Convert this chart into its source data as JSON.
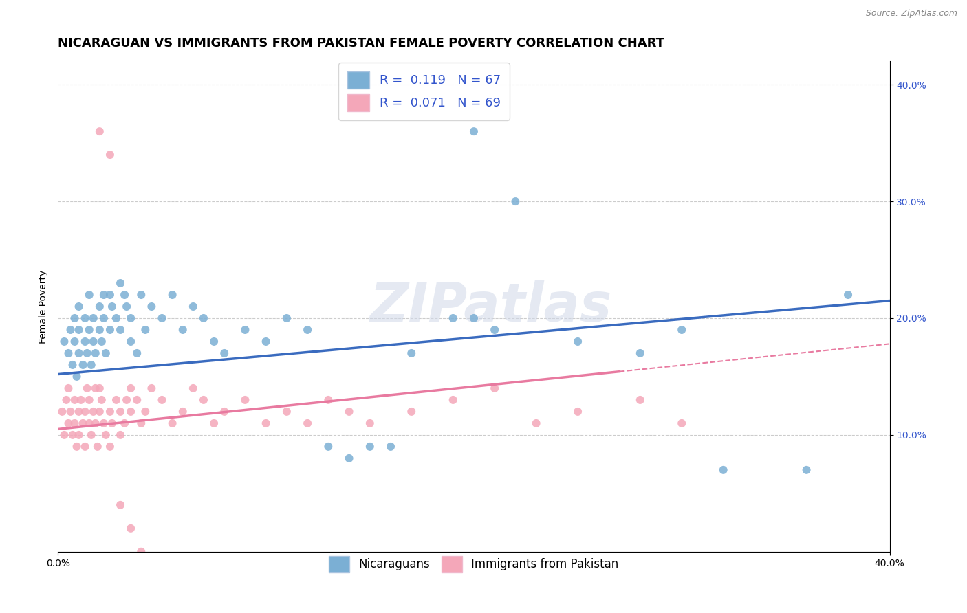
{
  "title": "NICARAGUAN VS IMMIGRANTS FROM PAKISTAN FEMALE POVERTY CORRELATION CHART",
  "source": "Source: ZipAtlas.com",
  "ylabel": "Female Poverty",
  "watermark": "ZIPatlas",
  "blue_color": "#7bafd4",
  "pink_color": "#f4a7b9",
  "blue_line_color": "#3a6bbf",
  "pink_line_color": "#e87aa0",
  "title_fontsize": 13,
  "axis_label_fontsize": 10,
  "tick_fontsize": 10,
  "xlim": [
    0.0,
    0.4
  ],
  "ylim": [
    0.0,
    0.42
  ],
  "blue_N": 67,
  "pink_N": 69,
  "blue_R": 0.119,
  "pink_R": 0.071,
  "blue_line_x0": 0.0,
  "blue_line_y0": 0.152,
  "blue_line_x1": 0.4,
  "blue_line_y1": 0.215,
  "pink_line_x0": 0.0,
  "pink_line_y0": 0.105,
  "pink_line_x1": 0.4,
  "pink_line_y1": 0.178,
  "blue_scatter_x": [
    0.003,
    0.005,
    0.006,
    0.007,
    0.008,
    0.008,
    0.009,
    0.01,
    0.01,
    0.01,
    0.012,
    0.013,
    0.013,
    0.014,
    0.015,
    0.015,
    0.016,
    0.017,
    0.017,
    0.018,
    0.02,
    0.02,
    0.021,
    0.022,
    0.022,
    0.023,
    0.025,
    0.025,
    0.026,
    0.028,
    0.03,
    0.03,
    0.032,
    0.033,
    0.035,
    0.035,
    0.038,
    0.04,
    0.042,
    0.045,
    0.05,
    0.055,
    0.06,
    0.065,
    0.07,
    0.075,
    0.08,
    0.09,
    0.1,
    0.11,
    0.12,
    0.13,
    0.14,
    0.15,
    0.16,
    0.17,
    0.19,
    0.2,
    0.21,
    0.25,
    0.28,
    0.3,
    0.32,
    0.36,
    0.38,
    0.2,
    0.22
  ],
  "blue_scatter_y": [
    0.18,
    0.17,
    0.19,
    0.16,
    0.18,
    0.2,
    0.15,
    0.17,
    0.19,
    0.21,
    0.16,
    0.18,
    0.2,
    0.17,
    0.19,
    0.22,
    0.16,
    0.18,
    0.2,
    0.17,
    0.19,
    0.21,
    0.18,
    0.2,
    0.22,
    0.17,
    0.19,
    0.22,
    0.21,
    0.2,
    0.23,
    0.19,
    0.22,
    0.21,
    0.2,
    0.18,
    0.17,
    0.22,
    0.19,
    0.21,
    0.2,
    0.22,
    0.19,
    0.21,
    0.2,
    0.18,
    0.17,
    0.19,
    0.18,
    0.2,
    0.19,
    0.09,
    0.08,
    0.09,
    0.09,
    0.17,
    0.2,
    0.2,
    0.19,
    0.18,
    0.17,
    0.19,
    0.07,
    0.07,
    0.22,
    0.36,
    0.3
  ],
  "pink_scatter_x": [
    0.002,
    0.003,
    0.004,
    0.005,
    0.005,
    0.006,
    0.007,
    0.008,
    0.008,
    0.009,
    0.01,
    0.01,
    0.011,
    0.012,
    0.013,
    0.013,
    0.014,
    0.015,
    0.015,
    0.016,
    0.017,
    0.018,
    0.018,
    0.019,
    0.02,
    0.02,
    0.021,
    0.022,
    0.023,
    0.025,
    0.025,
    0.026,
    0.028,
    0.03,
    0.03,
    0.032,
    0.033,
    0.035,
    0.035,
    0.038,
    0.04,
    0.042,
    0.045,
    0.05,
    0.055,
    0.06,
    0.065,
    0.07,
    0.075,
    0.08,
    0.09,
    0.1,
    0.11,
    0.12,
    0.13,
    0.14,
    0.15,
    0.17,
    0.19,
    0.21,
    0.23,
    0.25,
    0.28,
    0.3,
    0.02,
    0.025,
    0.03,
    0.035,
    0.04
  ],
  "pink_scatter_y": [
    0.12,
    0.1,
    0.13,
    0.11,
    0.14,
    0.12,
    0.1,
    0.13,
    0.11,
    0.09,
    0.12,
    0.1,
    0.13,
    0.11,
    0.09,
    0.12,
    0.14,
    0.11,
    0.13,
    0.1,
    0.12,
    0.14,
    0.11,
    0.09,
    0.12,
    0.14,
    0.13,
    0.11,
    0.1,
    0.12,
    0.09,
    0.11,
    0.13,
    0.12,
    0.1,
    0.11,
    0.13,
    0.12,
    0.14,
    0.13,
    0.11,
    0.12,
    0.14,
    0.13,
    0.11,
    0.12,
    0.14,
    0.13,
    0.11,
    0.12,
    0.13,
    0.11,
    0.12,
    0.11,
    0.13,
    0.12,
    0.11,
    0.12,
    0.13,
    0.14,
    0.11,
    0.12,
    0.13,
    0.11,
    0.36,
    0.34,
    0.04,
    0.02,
    0.0
  ]
}
